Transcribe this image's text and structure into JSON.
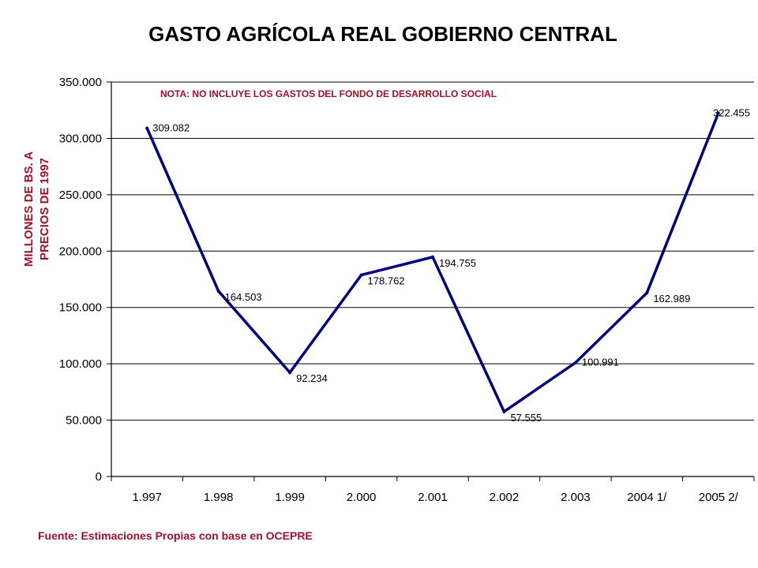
{
  "chart_data": {
    "type": "line",
    "title": "GASTO AGRÍCOLA REAL GOBIERNO CENTRAL",
    "note": "NOTA: NO INCLUYE LOS GASTOS DEL FONDO DE DESARROLLO SOCIAL",
    "ylabel_line1": "MILLONES DE BS. A",
    "ylabel_line2": "PRECIOS DE 1997",
    "xlabel": "",
    "source": "Fuente: Estimaciones Propias con base en OCEPRE",
    "categories": [
      "1.997",
      "1.998",
      "1.999",
      "2.000",
      "2.001",
      "2.002",
      "2.003",
      "2004 1/",
      "2005 2/"
    ],
    "values": [
      309.082,
      164.503,
      92.234,
      178.762,
      194.755,
      57.555,
      100.991,
      162.989,
      322.455
    ],
    "data_labels": [
      "309.082",
      "164.503",
      "92.234",
      "178.762",
      "194.755",
      "57.555",
      "100.991",
      "162.989",
      "322.455"
    ],
    "yticks": [
      0,
      50,
      100,
      150,
      200,
      250,
      300,
      350
    ],
    "ytick_labels": [
      "0",
      "50.000",
      "100.000",
      "150.000",
      "200.000",
      "250.000",
      "300.000",
      "350.000"
    ],
    "ylim": [
      0,
      350
    ],
    "grid": true,
    "colors": {
      "line": "#000080",
      "text_accent": "#a0102a",
      "grid": "#000000"
    }
  }
}
